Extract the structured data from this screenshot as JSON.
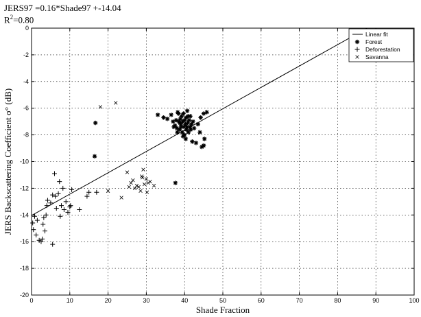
{
  "chart_data": {
    "type": "scatter",
    "annotation": {
      "equation": "JERS97 =0.16*Shade97 +-14.04",
      "r2_label": "R",
      "r2_sup": "2",
      "r2_value": "=0.80"
    },
    "xlabel": "Shade Fraction",
    "ylabel": "JERS Backscattering Coefficient σ° (dB)",
    "xlim": [
      0,
      100
    ],
    "ylim": [
      -20,
      0
    ],
    "xticks": [
      0,
      10,
      20,
      30,
      40,
      50,
      60,
      70,
      80,
      90,
      100
    ],
    "yticks": [
      0,
      -2,
      -4,
      -6,
      -8,
      -10,
      -12,
      -14,
      -16,
      -18,
      -20
    ],
    "grid": true,
    "legend_position": "top-right",
    "fit_line": {
      "name": "Linear fit",
      "slope": 0.16,
      "intercept": -14.04
    },
    "series": [
      {
        "name": "Forest",
        "marker": "star",
        "points": [
          [
            16.7,
            -7.1
          ],
          [
            16.5,
            -9.6
          ],
          [
            33,
            -6.5
          ],
          [
            34.5,
            -6.7
          ],
          [
            35.5,
            -6.8
          ],
          [
            36.5,
            -6.5
          ],
          [
            37,
            -7.0
          ],
          [
            37.5,
            -7.3
          ],
          [
            37.8,
            -6.9
          ],
          [
            38,
            -7.5
          ],
          [
            38.2,
            -6.3
          ],
          [
            38.5,
            -7.0
          ],
          [
            38.7,
            -7.6
          ],
          [
            38.9,
            -6.8
          ],
          [
            39,
            -7.2
          ],
          [
            39.2,
            -6.6
          ],
          [
            39.4,
            -7.8
          ],
          [
            39.5,
            -7.0
          ],
          [
            39.7,
            -6.4
          ],
          [
            39.8,
            -7.4
          ],
          [
            40,
            -6.9
          ],
          [
            40,
            -8.0
          ],
          [
            40.2,
            -7.2
          ],
          [
            40.4,
            -6.7
          ],
          [
            40.5,
            -7.6
          ],
          [
            40.7,
            -6.2
          ],
          [
            40.8,
            -7.1
          ],
          [
            41,
            -7.8
          ],
          [
            41.2,
            -6.9
          ],
          [
            41.4,
            -7.4
          ],
          [
            41.5,
            -6.6
          ],
          [
            41.8,
            -7.2
          ],
          [
            42,
            -8.5
          ],
          [
            42.2,
            -7.0
          ],
          [
            42.5,
            -7.5
          ],
          [
            43,
            -8.6
          ],
          [
            43.5,
            -7.2
          ],
          [
            44,
            -7.8
          ],
          [
            44.5,
            -8.9
          ],
          [
            45,
            -8.8
          ],
          [
            45.2,
            -8.3
          ],
          [
            45,
            -6.4
          ],
          [
            45.8,
            -6.3
          ],
          [
            44.2,
            -6.7
          ],
          [
            38.1,
            -7.8
          ],
          [
            37.6,
            -11.6
          ],
          [
            40.3,
            -8.3
          ],
          [
            39.6,
            -8.1
          ],
          [
            40.9,
            -6.6
          ],
          [
            38.4,
            -6.4
          ],
          [
            39.1,
            -7.4
          ],
          [
            40.6,
            -7.4
          ],
          [
            41.6,
            -7.6
          ],
          [
            37.2,
            -7.4
          ],
          [
            38.8,
            -7.1
          ]
        ]
      },
      {
        "name": "Deforestation",
        "marker": "plus",
        "points": [
          [
            0.3,
            -14.6
          ],
          [
            0.5,
            -15.1
          ],
          [
            0.8,
            -14.1
          ],
          [
            1.2,
            -15.5
          ],
          [
            1.5,
            -14.4
          ],
          [
            2,
            -15.9
          ],
          [
            2.5,
            -16.0
          ],
          [
            2.8,
            -15.8
          ],
          [
            3,
            -14.7
          ],
          [
            3.2,
            -14.2
          ],
          [
            3.5,
            -15.2
          ],
          [
            3.8,
            -14.0
          ],
          [
            4,
            -13.3
          ],
          [
            4.2,
            -12.9
          ],
          [
            5,
            -13.1
          ],
          [
            5.5,
            -12.5
          ],
          [
            5.5,
            -16.2
          ],
          [
            6,
            -10.9
          ],
          [
            6.2,
            -12.6
          ],
          [
            6.5,
            -13.5
          ],
          [
            7,
            -12.4
          ],
          [
            7.3,
            -11.5
          ],
          [
            7.5,
            -14.1
          ],
          [
            7.8,
            -13.3
          ],
          [
            8.2,
            -12.0
          ],
          [
            8.5,
            -13.6
          ],
          [
            9,
            -13.0
          ],
          [
            9.5,
            -13.8
          ],
          [
            10,
            -13.4
          ],
          [
            10.2,
            -13.3
          ],
          [
            10.5,
            -12.1
          ],
          [
            12.5,
            -13.6
          ],
          [
            14.5,
            -12.6
          ],
          [
            15,
            -12.3
          ],
          [
            17,
            -12.3
          ]
        ]
      },
      {
        "name": "Savanna",
        "marker": "x",
        "points": [
          [
            18,
            -5.9
          ],
          [
            22,
            -5.6
          ],
          [
            20,
            -12.2
          ],
          [
            23.5,
            -12.7
          ],
          [
            25,
            -10.8
          ],
          [
            25.5,
            -11.9
          ],
          [
            26,
            -11.6
          ],
          [
            26.5,
            -11.4
          ],
          [
            27,
            -12.0
          ],
          [
            27.5,
            -11.8
          ],
          [
            28,
            -11.9
          ],
          [
            28.5,
            -12.2
          ],
          [
            29,
            -11.2
          ],
          [
            29.2,
            -10.6
          ],
          [
            29.5,
            -11.7
          ],
          [
            30,
            -11.3
          ],
          [
            30.2,
            -12.3
          ],
          [
            30.5,
            -11.6
          ],
          [
            31,
            -11.5
          ],
          [
            32,
            -11.8
          ],
          [
            28.8,
            -11.1
          ]
        ]
      }
    ]
  }
}
